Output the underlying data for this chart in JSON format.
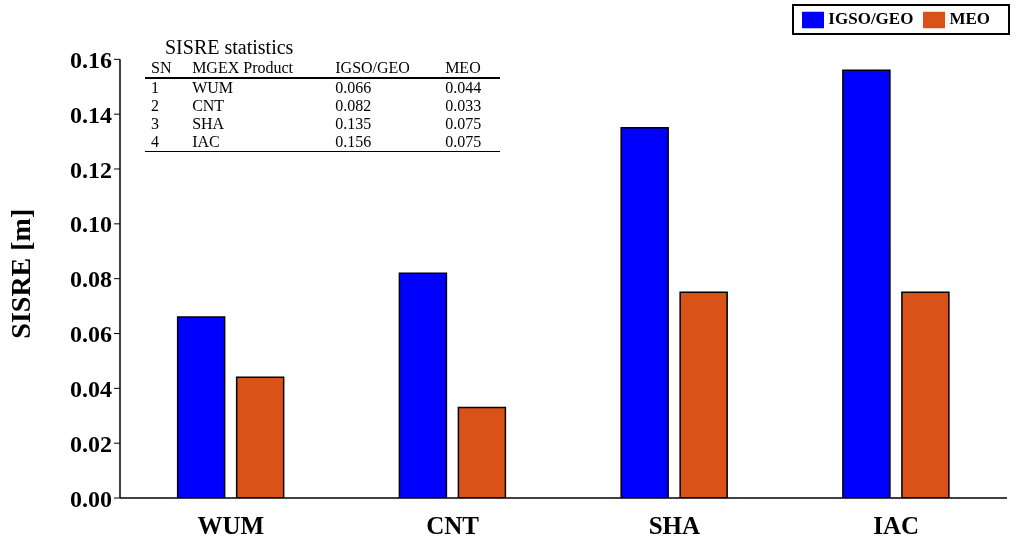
{
  "chart_data": {
    "type": "bar",
    "ylabel": "SISRE [m]",
    "categories": [
      "WUM",
      "CNT",
      "SHA",
      "IAC"
    ],
    "series": [
      {
        "name": "IGSO/GEO",
        "color": "#0000ff",
        "values": [
          0.066,
          0.082,
          0.135,
          0.156
        ]
      },
      {
        "name": "MEO",
        "color": "#d95319",
        "values": [
          0.044,
          0.033,
          0.075,
          0.075
        ]
      }
    ],
    "ylim": [
      0,
      0.16
    ],
    "yticks": [
      {
        "value": 0,
        "label": "0.00"
      },
      {
        "value": 0.02,
        "label": "0.02"
      },
      {
        "value": 0.04,
        "label": "0.04"
      },
      {
        "value": 0.06,
        "label": "0.06"
      },
      {
        "value": 0.08,
        "label": "0.08"
      },
      {
        "value": 0.1,
        "label": "0.10"
      },
      {
        "value": 0.12,
        "label": "0.12"
      },
      {
        "value": 0.14,
        "label": "0.14"
      },
      {
        "value": 0.16,
        "label": "0.16"
      }
    ],
    "annotations": [
      "SISRE statistics",
      "SN",
      "MGEX Product",
      "IGSO/GEO",
      "MEO",
      "1",
      "WUM",
      "0.066",
      "0.044",
      "2",
      "CNT",
      "0.082",
      "0.033",
      "3",
      "SHA",
      "0.135",
      "0.075",
      "4",
      "IAC",
      "0.156",
      "0.075"
    ],
    "legend": "top right",
    "grid": false
  }
}
